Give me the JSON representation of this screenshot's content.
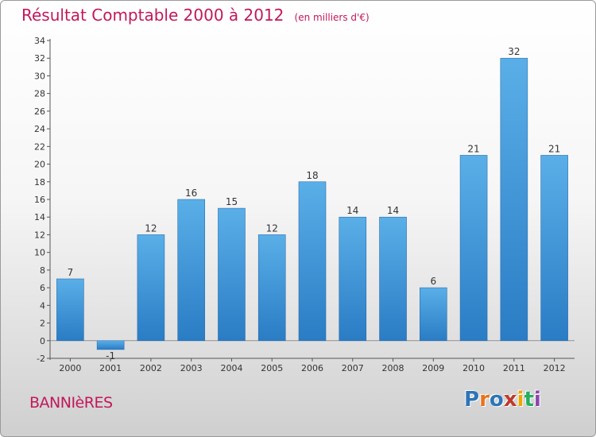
{
  "header": {
    "title": "Résultat Comptable 2000 à 2012",
    "subtitle": "(en milliers d'€)"
  },
  "footer": {
    "commune": "BANNIèRES",
    "logo_text": "Proxiti"
  },
  "colors": {
    "accent": "#c2185b",
    "bar_top": "#5aafe8",
    "bar_bottom": "#2a7cc4",
    "logo_letters": [
      "#2e75b6",
      "#e8731e",
      "#2e75b6",
      "#c0392b",
      "#f0a500",
      "#27ae60",
      "#8e44ad"
    ]
  },
  "chart_data": {
    "type": "bar",
    "title": "Résultat Comptable 2000 à 2012",
    "subtitle": "(en milliers d'€)",
    "categories": [
      "2000",
      "2001",
      "2002",
      "2003",
      "2004",
      "2005",
      "2006",
      "2007",
      "2008",
      "2009",
      "2010",
      "2011",
      "2012"
    ],
    "values": [
      7,
      -1,
      12,
      16,
      15,
      12,
      18,
      14,
      14,
      6,
      21,
      32,
      21
    ],
    "data_labels": [
      "7",
      "-1",
      "12",
      "16",
      "15",
      "12",
      "18",
      "14",
      "14",
      "6",
      "21",
      "32",
      "21"
    ],
    "yticks": [
      "-2",
      "0",
      "2",
      "4",
      "6",
      "8",
      "10",
      "12",
      "14",
      "16",
      "18",
      "20",
      "22",
      "24",
      "26",
      "28",
      "30",
      "32",
      "34"
    ],
    "ylim": [
      -2,
      34
    ],
    "xlabel": "",
    "ylabel": "",
    "grid": false,
    "legend": "none"
  }
}
